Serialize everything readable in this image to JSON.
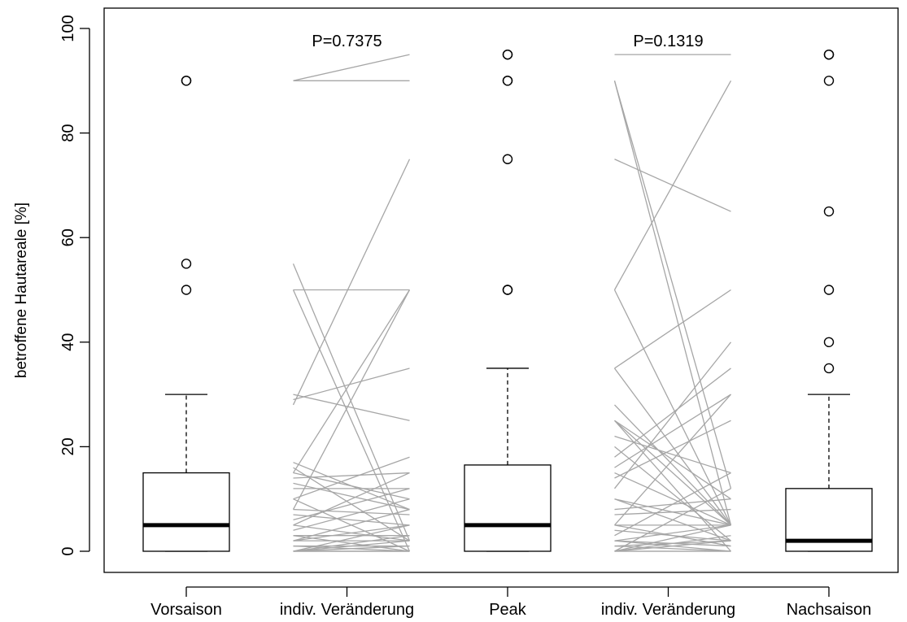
{
  "chart_data": {
    "type": "box",
    "ylabel": "betroffene Hautareale [%]",
    "ylim": [
      0,
      100
    ],
    "yticks": [
      "0",
      "20",
      "40",
      "60",
      "80",
      "100"
    ],
    "ytick_values": [
      0,
      20,
      40,
      60,
      80,
      100
    ],
    "categories": [
      "Vorsaison",
      "indiv. Veränderung",
      "Peak",
      "indiv. Veränderung",
      "Nachsaison"
    ],
    "colors": {
      "box": "#000000",
      "change_line": "#a6a6a6",
      "p_line": "#a6a6a6"
    },
    "boxes": [
      {
        "category": "Vorsaison",
        "position": 1,
        "min": 0,
        "q1": 0,
        "median": 5,
        "q3": 15,
        "max": 30,
        "outliers": [
          50,
          55,
          90,
          90
        ]
      },
      {
        "category": "Peak",
        "position": 3,
        "min": 0,
        "q1": 0,
        "median": 5,
        "q3": 16.5,
        "max": 35,
        "outliers": [
          50,
          50,
          75,
          90,
          90,
          95,
          95
        ]
      },
      {
        "category": "Nachsaison",
        "position": 5,
        "min": 0,
        "q1": 0,
        "median": 2,
        "q3": 12,
        "max": 30,
        "outliers": [
          35,
          40,
          50,
          65,
          90,
          95,
          95
        ]
      }
    ],
    "annotations": [
      {
        "text": "P=0.7375",
        "position": 2,
        "y": 95
      },
      {
        "text": "P=0.1319",
        "position": 4,
        "y": 95
      }
    ],
    "changes": [
      {
        "position": 2,
        "pairs": [
          [
            90,
            95
          ],
          [
            90,
            90
          ],
          [
            50,
            50
          ],
          [
            55,
            2
          ],
          [
            30,
            25
          ],
          [
            28,
            75
          ],
          [
            29,
            35
          ],
          [
            15,
            50
          ],
          [
            14,
            15
          ],
          [
            15,
            10
          ],
          [
            16,
            2
          ],
          [
            13,
            8
          ],
          [
            12,
            12
          ],
          [
            10,
            18
          ],
          [
            8,
            50
          ],
          [
            8,
            7
          ],
          [
            7,
            5
          ],
          [
            6,
            12
          ],
          [
            5,
            15
          ],
          [
            5,
            2
          ],
          [
            4,
            10
          ],
          [
            3,
            3
          ],
          [
            2,
            2
          ],
          [
            2,
            5
          ],
          [
            2,
            8
          ],
          [
            1,
            1
          ],
          [
            0,
            0
          ],
          [
            0,
            2
          ],
          [
            0,
            5
          ],
          [
            0,
            3
          ],
          [
            0,
            0
          ],
          [
            0,
            1
          ],
          [
            0,
            0
          ],
          [
            1,
            0
          ],
          [
            3,
            0
          ],
          [
            10,
            0
          ],
          [
            17,
            8
          ],
          [
            50,
            0
          ]
        ]
      },
      {
        "position": 4,
        "pairs": [
          [
            95,
            95
          ],
          [
            90,
            5
          ],
          [
            90,
            12
          ],
          [
            75,
            65
          ],
          [
            50,
            90
          ],
          [
            50,
            5
          ],
          [
            35,
            50
          ],
          [
            25,
            5
          ],
          [
            25,
            10
          ],
          [
            25,
            0
          ],
          [
            22,
            15
          ],
          [
            20,
            2
          ],
          [
            18,
            35
          ],
          [
            16,
            30
          ],
          [
            14,
            25
          ],
          [
            12,
            40
          ],
          [
            10,
            5
          ],
          [
            10,
            2
          ],
          [
            8,
            10
          ],
          [
            7,
            8
          ],
          [
            5,
            30
          ],
          [
            5,
            1
          ],
          [
            4,
            2
          ],
          [
            3,
            15
          ],
          [
            2,
            0
          ],
          [
            2,
            1
          ],
          [
            1,
            2
          ],
          [
            1,
            0
          ],
          [
            0,
            0
          ],
          [
            0,
            5
          ],
          [
            0,
            12
          ],
          [
            0,
            2
          ],
          [
            0,
            0
          ],
          [
            0,
            3
          ],
          [
            2,
            5
          ],
          [
            5,
            5
          ],
          [
            15,
            5
          ],
          [
            35,
            5
          ],
          [
            28,
            5
          ]
        ]
      }
    ]
  }
}
